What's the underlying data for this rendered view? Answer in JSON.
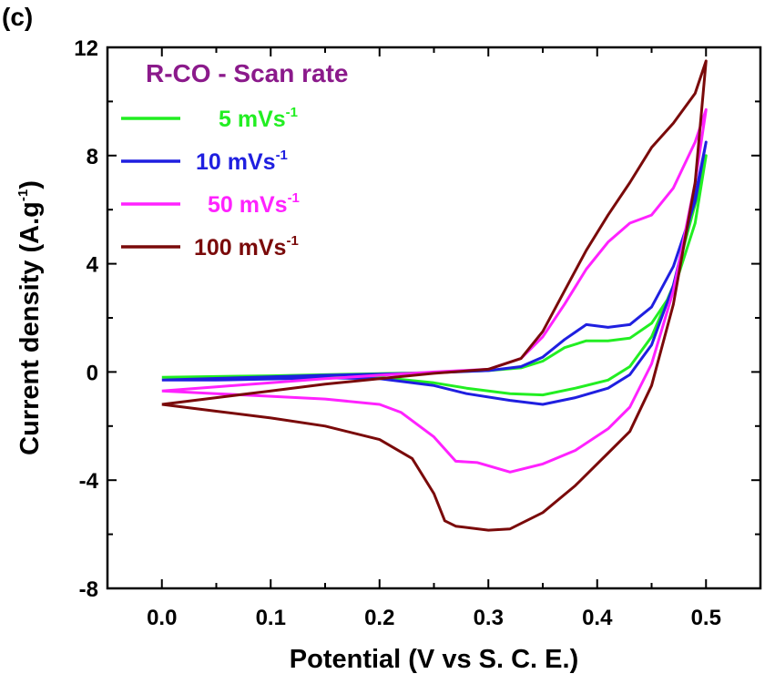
{
  "panel_label": "(c)",
  "chart_data": {
    "type": "line",
    "title": "R-CO - Scan rate",
    "title_color": "#8B1A8B",
    "xlabel": "Potential (V vs S. C. E.)",
    "ylabel": "Current density (A.g",
    "ylabel_sup": "-1",
    "ylabel_end": ")",
    "xlim": [
      -0.05,
      0.55
    ],
    "ylim": [
      -8,
      12
    ],
    "xticks": [
      0.0,
      0.1,
      0.2,
      0.3,
      0.4,
      0.5
    ],
    "xtick_labels": [
      "0.0",
      "0.1",
      "0.2",
      "0.3",
      "0.4",
      "0.5"
    ],
    "yticks": [
      -8,
      -4,
      0,
      4,
      8,
      12
    ],
    "ytick_labels": [
      "-8",
      "-4",
      "0",
      "4",
      "8",
      "12"
    ],
    "grid": false,
    "legend_position": "top-left",
    "series": [
      {
        "name": "5 mVs",
        "name_sup": "-1",
        "color": "#22EE22",
        "upper": [
          [
            0.0,
            -0.2
          ],
          [
            0.05,
            -0.17
          ],
          [
            0.1,
            -0.14
          ],
          [
            0.15,
            -0.1
          ],
          [
            0.2,
            -0.06
          ],
          [
            0.25,
            -0.02
          ],
          [
            0.3,
            0.05
          ],
          [
            0.33,
            0.15
          ],
          [
            0.35,
            0.4
          ],
          [
            0.37,
            0.9
          ],
          [
            0.39,
            1.15
          ],
          [
            0.41,
            1.15
          ],
          [
            0.43,
            1.25
          ],
          [
            0.45,
            1.8
          ],
          [
            0.47,
            3.0
          ],
          [
            0.49,
            5.5
          ],
          [
            0.5,
            8.0
          ]
        ],
        "lower": [
          [
            0.5,
            8.0
          ],
          [
            0.49,
            6.2
          ],
          [
            0.47,
            3.2
          ],
          [
            0.45,
            1.3
          ],
          [
            0.43,
            0.2
          ],
          [
            0.41,
            -0.3
          ],
          [
            0.38,
            -0.6
          ],
          [
            0.35,
            -0.85
          ],
          [
            0.32,
            -0.8
          ],
          [
            0.28,
            -0.6
          ],
          [
            0.25,
            -0.4
          ],
          [
            0.2,
            -0.2
          ],
          [
            0.15,
            -0.16
          ],
          [
            0.1,
            -0.2
          ],
          [
            0.05,
            -0.22
          ],
          [
            0.0,
            -0.2
          ]
        ]
      },
      {
        "name": "10 mVs",
        "name_sup": "-1",
        "color": "#1F1FE0",
        "upper": [
          [
            0.0,
            -0.3
          ],
          [
            0.05,
            -0.24
          ],
          [
            0.1,
            -0.18
          ],
          [
            0.15,
            -0.12
          ],
          [
            0.2,
            -0.08
          ],
          [
            0.25,
            -0.03
          ],
          [
            0.3,
            0.05
          ],
          [
            0.33,
            0.2
          ],
          [
            0.35,
            0.55
          ],
          [
            0.37,
            1.2
          ],
          [
            0.39,
            1.75
          ],
          [
            0.41,
            1.65
          ],
          [
            0.43,
            1.75
          ],
          [
            0.45,
            2.4
          ],
          [
            0.47,
            3.9
          ],
          [
            0.49,
            6.3
          ],
          [
            0.5,
            8.5
          ]
        ],
        "lower": [
          [
            0.5,
            8.5
          ],
          [
            0.49,
            6.5
          ],
          [
            0.47,
            3.2
          ],
          [
            0.45,
            1.0
          ],
          [
            0.43,
            -0.1
          ],
          [
            0.41,
            -0.6
          ],
          [
            0.38,
            -0.95
          ],
          [
            0.35,
            -1.2
          ],
          [
            0.32,
            -1.05
          ],
          [
            0.28,
            -0.8
          ],
          [
            0.25,
            -0.5
          ],
          [
            0.2,
            -0.25
          ],
          [
            0.15,
            -0.22
          ],
          [
            0.1,
            -0.26
          ],
          [
            0.05,
            -0.3
          ],
          [
            0.0,
            -0.3
          ]
        ]
      },
      {
        "name": "50 mVs",
        "name_sup": "-1",
        "color": "#FF22FF",
        "upper": [
          [
            0.0,
            -0.7
          ],
          [
            0.05,
            -0.55
          ],
          [
            0.1,
            -0.4
          ],
          [
            0.15,
            -0.25
          ],
          [
            0.2,
            -0.12
          ],
          [
            0.25,
            0.0
          ],
          [
            0.3,
            0.1
          ],
          [
            0.33,
            0.5
          ],
          [
            0.35,
            1.3
          ],
          [
            0.37,
            2.5
          ],
          [
            0.39,
            3.8
          ],
          [
            0.41,
            4.8
          ],
          [
            0.43,
            5.5
          ],
          [
            0.45,
            5.8
          ],
          [
            0.47,
            6.8
          ],
          [
            0.49,
            8.5
          ],
          [
            0.5,
            9.7
          ]
        ],
        "lower": [
          [
            0.5,
            9.7
          ],
          [
            0.49,
            7.0
          ],
          [
            0.47,
            3.0
          ],
          [
            0.45,
            0.3
          ],
          [
            0.43,
            -1.3
          ],
          [
            0.41,
            -2.1
          ],
          [
            0.38,
            -2.9
          ],
          [
            0.35,
            -3.4
          ],
          [
            0.32,
            -3.7
          ],
          [
            0.29,
            -3.35
          ],
          [
            0.27,
            -3.3
          ],
          [
            0.25,
            -2.4
          ],
          [
            0.22,
            -1.5
          ],
          [
            0.2,
            -1.2
          ],
          [
            0.15,
            -1.0
          ],
          [
            0.1,
            -0.9
          ],
          [
            0.05,
            -0.8
          ],
          [
            0.0,
            -0.7
          ]
        ]
      },
      {
        "name": "100 mVs",
        "name_sup": "-1",
        "color": "#7A0A0A",
        "upper": [
          [
            0.0,
            -1.2
          ],
          [
            0.05,
            -0.95
          ],
          [
            0.1,
            -0.7
          ],
          [
            0.15,
            -0.45
          ],
          [
            0.2,
            -0.25
          ],
          [
            0.25,
            -0.05
          ],
          [
            0.3,
            0.1
          ],
          [
            0.33,
            0.5
          ],
          [
            0.35,
            1.5
          ],
          [
            0.37,
            3.0
          ],
          [
            0.39,
            4.5
          ],
          [
            0.41,
            5.8
          ],
          [
            0.43,
            7.0
          ],
          [
            0.45,
            8.3
          ],
          [
            0.47,
            9.2
          ],
          [
            0.49,
            10.3
          ],
          [
            0.5,
            11.5
          ]
        ],
        "lower": [
          [
            0.5,
            11.5
          ],
          [
            0.49,
            7.0
          ],
          [
            0.47,
            2.5
          ],
          [
            0.45,
            -0.5
          ],
          [
            0.43,
            -2.2
          ],
          [
            0.41,
            -3.0
          ],
          [
            0.38,
            -4.2
          ],
          [
            0.35,
            -5.2
          ],
          [
            0.32,
            -5.8
          ],
          [
            0.3,
            -5.85
          ],
          [
            0.27,
            -5.7
          ],
          [
            0.26,
            -5.5
          ],
          [
            0.25,
            -4.5
          ],
          [
            0.23,
            -3.2
          ],
          [
            0.2,
            -2.5
          ],
          [
            0.15,
            -2.0
          ],
          [
            0.1,
            -1.7
          ],
          [
            0.05,
            -1.45
          ],
          [
            0.0,
            -1.2
          ]
        ]
      }
    ]
  }
}
